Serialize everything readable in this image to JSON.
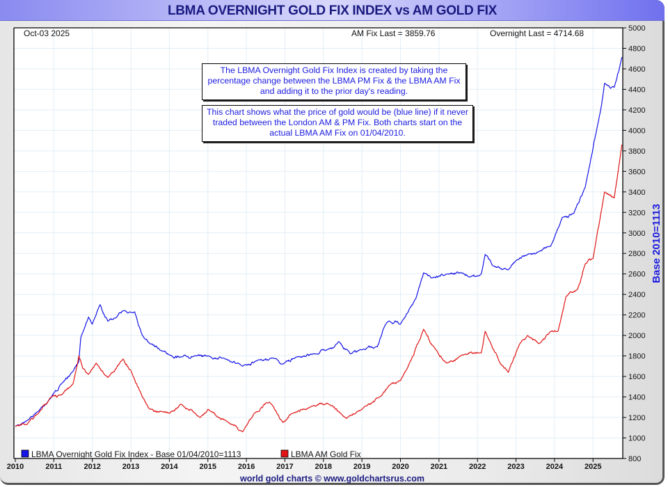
{
  "window": {
    "title": "LBMA OVERNIGHT GOLD FIX INDEX vs AM GOLD FIX",
    "footer": "world gold charts © www.goldchartsrus.com"
  },
  "header": {
    "date": "Oct-03  2025",
    "am_fix_last": "AM Fix Last = 3859.76",
    "overnight_last": "Overnight Last = 4714.68"
  },
  "notes": [
    "The LBMA Overnight Gold Fix Index is created by taking the percentage change between the LBMA PM Fix & the LBMA AM Fix and adding it to the prior day's reading.",
    "This chart shows what the price of gold would be (blue line) if it never traded between the London AM & PM Fix. Both charts start on the actual LBMA AM Fix on 01/04/2010."
  ],
  "chart_data": {
    "type": "line",
    "title": "LBMA OVERNIGHT GOLD FIX INDEX vs AM GOLD FIX",
    "xlabel": "",
    "ylabel": "Base 2010=1113",
    "xlim": [
      2010,
      2025.8
    ],
    "ylim": [
      800,
      5000
    ],
    "x_ticks": [
      "2010",
      "2011",
      "2012",
      "2013",
      "2014",
      "2015",
      "2016",
      "2017",
      "2018",
      "2019",
      "2020",
      "2021",
      "2022",
      "2023",
      "2024",
      "2025"
    ],
    "y_ticks": [
      800,
      1000,
      1200,
      1400,
      1600,
      1800,
      2000,
      2200,
      2400,
      2600,
      2800,
      3000,
      3200,
      3400,
      3600,
      3800,
      4000,
      4200,
      4400,
      4600,
      4800,
      5000
    ],
    "grid": true,
    "legend_position": "bottom-left",
    "series": [
      {
        "name": "LBMA Overnight Gold Fix Index - Base 01/04/2010=1113",
        "color": "#1414e6",
        "x": [
          2010.0,
          2010.3,
          2010.6,
          2010.9,
          2011.2,
          2011.5,
          2011.65,
          2011.7,
          2011.9,
          2012.0,
          2012.2,
          2012.4,
          2012.6,
          2012.8,
          2013.1,
          2013.3,
          2013.5,
          2013.8,
          2014.0,
          2014.3,
          2014.7,
          2015.0,
          2015.4,
          2015.9,
          2016.3,
          2016.7,
          2016.95,
          2017.3,
          2017.8,
          2018.1,
          2018.4,
          2018.7,
          2019.0,
          2019.4,
          2019.55,
          2019.7,
          2020.0,
          2020.2,
          2020.4,
          2020.6,
          2020.8,
          2021.2,
          2021.6,
          2021.8,
          2022.1,
          2022.2,
          2022.4,
          2022.8,
          2023.0,
          2023.3,
          2023.6,
          2023.9,
          2024.2,
          2024.5,
          2024.8,
          2025.2,
          2025.3,
          2025.55,
          2025.75
        ],
        "values": [
          1113,
          1170,
          1260,
          1380,
          1530,
          1650,
          1750,
          1980,
          2180,
          2110,
          2300,
          2140,
          2170,
          2240,
          2230,
          2000,
          1920,
          1850,
          1810,
          1790,
          1800,
          1800,
          1780,
          1700,
          1760,
          1780,
          1720,
          1790,
          1820,
          1860,
          1940,
          1820,
          1860,
          1890,
          2060,
          2140,
          2110,
          2230,
          2360,
          2610,
          2560,
          2600,
          2610,
          2570,
          2600,
          2790,
          2680,
          2640,
          2730,
          2790,
          2820,
          2870,
          3150,
          3190,
          3450,
          4200,
          4460,
          4420,
          4714.68
        ]
      },
      {
        "name": "LBMA AM Gold Fix",
        "color": "#e01414",
        "x": [
          2010.0,
          2010.3,
          2010.6,
          2010.9,
          2011.2,
          2011.5,
          2011.65,
          2011.75,
          2011.9,
          2012.1,
          2012.4,
          2012.8,
          2013.0,
          2013.3,
          2013.5,
          2013.8,
          2014.0,
          2014.3,
          2014.8,
          2015.0,
          2015.5,
          2015.9,
          2016.2,
          2016.6,
          2016.95,
          2017.2,
          2017.7,
          2018.1,
          2018.6,
          2019.0,
          2019.5,
          2019.7,
          2020.0,
          2020.2,
          2020.6,
          2020.9,
          2021.2,
          2021.6,
          2022.1,
          2022.2,
          2022.6,
          2022.8,
          2023.1,
          2023.3,
          2023.6,
          2023.9,
          2024.1,
          2024.3,
          2024.6,
          2024.8,
          2025.0,
          2025.3,
          2025.55,
          2025.75
        ],
        "values": [
          1113,
          1130,
          1240,
          1390,
          1420,
          1530,
          1800,
          1680,
          1620,
          1730,
          1590,
          1770,
          1660,
          1400,
          1280,
          1260,
          1240,
          1330,
          1200,
          1280,
          1160,
          1060,
          1240,
          1350,
          1150,
          1240,
          1310,
          1340,
          1190,
          1280,
          1410,
          1510,
          1560,
          1700,
          2060,
          1870,
          1730,
          1810,
          1830,
          2040,
          1720,
          1640,
          1920,
          2000,
          1920,
          2040,
          2050,
          2380,
          2450,
          2700,
          2750,
          3400,
          3340,
          3859.76
        ]
      }
    ]
  }
}
